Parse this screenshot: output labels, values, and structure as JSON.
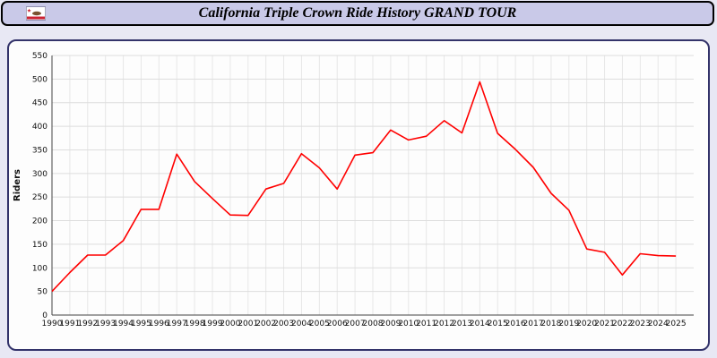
{
  "window": {
    "title": "California Triple Crown Ride History GRAND TOUR"
  },
  "icons": {
    "flag": "california-flag-icon"
  },
  "colors": {
    "line": "#ff0000",
    "panel_border": "#33336a",
    "titlebar_bg": "#c9c9e8",
    "page_bg": "#e8e8f4",
    "grid": "#dddddd"
  },
  "chart_data": {
    "type": "line",
    "title": "California Triple Crown Ride History GRAND TOUR",
    "xlabel": "",
    "ylabel": "Riders",
    "ylim": [
      0,
      550
    ],
    "ytick_step": 50,
    "xlim": [
      1990,
      2026
    ],
    "grid": true,
    "legend": "none",
    "line_color": "#ff0000",
    "x": [
      1990,
      1991,
      1992,
      1993,
      1994,
      1995,
      1996,
      1997,
      1998,
      1999,
      2000,
      2001,
      2002,
      2003,
      2004,
      2005,
      2006,
      2007,
      2008,
      2009,
      2010,
      2011,
      2012,
      2013,
      2014,
      2015,
      2016,
      2017,
      2018,
      2019,
      2020,
      2021,
      2022,
      2023,
      2024,
      2025
    ],
    "values": [
      50,
      90,
      127,
      127,
      158,
      224,
      224,
      341,
      283,
      247,
      212,
      211,
      267,
      279,
      342,
      312,
      267,
      339,
      344,
      392,
      371,
      379,
      412,
      386,
      494,
      385,
      351,
      313,
      258,
      222,
      140,
      133,
      85,
      130,
      126,
      125
    ]
  }
}
